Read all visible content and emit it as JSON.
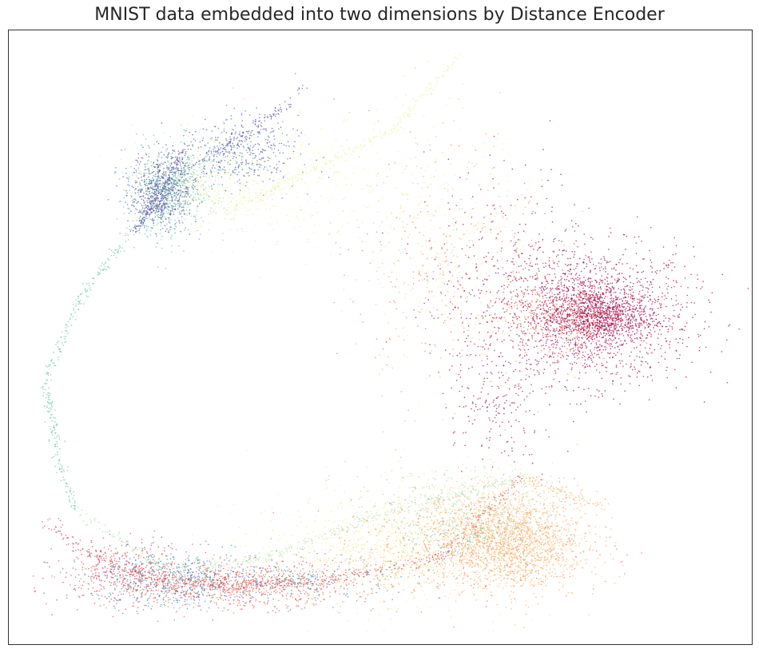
{
  "chart_data": {
    "type": "scatter",
    "title": "MNIST data embedded into two dimensions by Distance Encoder",
    "xlabel": "",
    "ylabel": "",
    "grid": false,
    "legend": "none",
    "xticks": [],
    "yticks": [],
    "xlim": [
      0,
      100
    ],
    "ylim": [
      0,
      100
    ],
    "frame_color": "#333333",
    "point_alpha": 0.7,
    "palette": {
      "crimson": "#9e0142",
      "red": "#d53e4f",
      "orange": "#f46d43",
      "light_orange": "#fdae61",
      "yellow": "#fee08b",
      "pale_yellow": "#ffffbf",
      "light_green": "#e6f598",
      "green": "#abdda4",
      "teal": "#66c2a5",
      "blue": "#3288bd",
      "purple": "#5e4fa2"
    },
    "series": [
      {
        "label_color": "#9e0142",
        "clusters": [
          {
            "cx": 79,
            "cy": 53.5,
            "sx": 6.5,
            "sy": 5.5,
            "n": 1500
          },
          {
            "cx": 79,
            "cy": 53.5,
            "sx": 3.5,
            "sy": 2.2,
            "n": 900
          },
          {
            "cx": 68,
            "cy": 58,
            "sx": 6,
            "sy": 10,
            "n": 400
          },
          {
            "cx": 66,
            "cy": 37,
            "sx": 3,
            "sy": 5,
            "n": 140
          }
        ]
      },
      {
        "label_color": "#d53e4f",
        "clusters": [
          {
            "cx": 16,
            "cy": 11.5,
            "sx": 4.5,
            "sy": 2.5,
            "n": 450
          },
          {
            "cx": 32,
            "cy": 9.5,
            "sx": 7,
            "sy": 1.8,
            "n": 350
          },
          {
            "cx": 72,
            "cy": 56,
            "sx": 4,
            "sy": 3,
            "n": 130
          }
        ],
        "paths": [
          {
            "points": [
              [
                5,
                20.5
              ],
              [
                9,
                16
              ],
              [
                20,
                10.2
              ],
              [
                30,
                9.5
              ],
              [
                44,
                10.5
              ],
              [
                58,
                14
              ],
              [
                69,
                27
              ]
            ],
            "n": 500,
            "spread": 0.5
          }
        ]
      },
      {
        "label_color": "#f46d43",
        "clusters": [
          {
            "cx": 30,
            "cy": 9.5,
            "sx": 8,
            "sy": 1.8,
            "n": 500
          },
          {
            "cx": 63,
            "cy": 16,
            "sx": 9,
            "sy": 4.5,
            "n": 350
          },
          {
            "cx": 75,
            "cy": 52.5,
            "sx": 4,
            "sy": 3,
            "n": 280
          },
          {
            "cx": 58,
            "cy": 60,
            "sx": 6,
            "sy": 9,
            "n": 140
          }
        ]
      },
      {
        "label_color": "#fdae61",
        "clusters": [
          {
            "cx": 66,
            "cy": 17.5,
            "sx": 5.5,
            "sy": 3.5,
            "n": 1500
          },
          {
            "cx": 69,
            "cy": 15,
            "sx": 4,
            "sy": 4,
            "n": 500
          },
          {
            "cx": 60,
            "cy": 60,
            "sx": 7,
            "sy": 12,
            "n": 200
          },
          {
            "cx": 49,
            "cy": 12.5,
            "sx": 6,
            "sy": 2.5,
            "n": 180
          }
        ],
        "paths": [
          {
            "points": [
              [
                69,
                27
              ],
              [
                80,
                22.5
              ]
            ],
            "n": 110,
            "spread": 0.6
          }
        ]
      },
      {
        "label_color": "#fee08b",
        "clusters": [
          {
            "cx": 52,
            "cy": 16,
            "sx": 9,
            "sy": 5,
            "n": 400
          },
          {
            "cx": 63,
            "cy": 24,
            "sx": 5,
            "sy": 2.5,
            "n": 150
          },
          {
            "cx": 40,
            "cy": 75,
            "sx": 7,
            "sy": 6,
            "n": 150
          },
          {
            "cx": 57,
            "cy": 70,
            "sx": 5,
            "sy": 10,
            "n": 120
          }
        ]
      },
      {
        "label_color": "#ffffbf",
        "clusters": [
          {
            "cx": 52,
            "cy": 17,
            "sx": 9,
            "sy": 4,
            "n": 350
          },
          {
            "cx": 38,
            "cy": 78,
            "sx": 6,
            "sy": 4,
            "n": 250
          },
          {
            "cx": 60,
            "cy": 66,
            "sx": 6,
            "sy": 10,
            "n": 120
          }
        ]
      },
      {
        "label_color": "#e6f598",
        "clusters": [
          {
            "cx": 50,
            "cy": 15.5,
            "sx": 9,
            "sy": 4.5,
            "n": 350
          },
          {
            "cx": 27,
            "cy": 76,
            "sx": 5,
            "sy": 4,
            "n": 300
          },
          {
            "cx": 62,
            "cy": 63,
            "sx": 6,
            "sy": 10,
            "n": 120
          }
        ],
        "paths": [
          {
            "points": [
              [
                29,
                70
              ],
              [
                52,
                84
              ],
              [
                61,
                96
              ]
            ],
            "n": 250,
            "spread": 0.35
          }
        ]
      },
      {
        "label_color": "#abdda4",
        "clusters": [
          {
            "cx": 24.5,
            "cy": 75.5,
            "sx": 3,
            "sy": 3.5,
            "n": 320
          },
          {
            "cx": 60,
            "cy": 24,
            "sx": 7,
            "sy": 2.5,
            "n": 180
          },
          {
            "cx": 56,
            "cy": 68,
            "sx": 5,
            "sy": 10,
            "n": 90
          }
        ],
        "paths": [
          {
            "points": [
              [
                9,
                22
              ],
              [
                20,
                13
              ],
              [
                26,
                12.5
              ],
              [
                36,
                14.5
              ],
              [
                50,
                21
              ],
              [
                69,
                27
              ]
            ],
            "n": 350,
            "spread": 0.4
          }
        ]
      },
      {
        "label_color": "#66c2a5",
        "clusters": [
          {
            "cx": 21,
            "cy": 73,
            "sx": 2.5,
            "sy": 3.5,
            "n": 400
          },
          {
            "cx": 62,
            "cy": 18,
            "sx": 5,
            "sy": 3,
            "n": 200
          }
        ],
        "paths": [
          {
            "points": [
              [
                9,
                22
              ],
              [
                7,
                28.5
              ],
              [
                5,
                43
              ],
              [
                9.5,
                56
              ],
              [
                16,
                66
              ],
              [
                24,
                78
              ]
            ],
            "n": 360,
            "spread": 0.35
          }
        ]
      },
      {
        "label_color": "#3288bd",
        "clusters": [
          {
            "cx": 22,
            "cy": 10.5,
            "sx": 5.5,
            "sy": 2.3,
            "n": 450
          },
          {
            "cx": 40,
            "cy": 10.5,
            "sx": 6,
            "sy": 1.8,
            "n": 200
          },
          {
            "cx": 31,
            "cy": 80,
            "sx": 4,
            "sy": 3,
            "n": 180
          },
          {
            "cx": 20.5,
            "cy": 73.5,
            "sx": 2.5,
            "sy": 3,
            "n": 180
          }
        ]
      },
      {
        "label_color": "#5e4fa2",
        "clusters": [
          {
            "cx": 20.5,
            "cy": 74,
            "sx": 2,
            "sy": 3,
            "n": 450
          },
          {
            "cx": 31,
            "cy": 80,
            "sx": 4,
            "sy": 3,
            "n": 240
          }
        ],
        "paths": [
          {
            "points": [
              [
                17,
                67
              ],
              [
                24,
                81
              ]
            ],
            "n": 150,
            "spread": 0.3
          },
          {
            "points": [
              [
                17,
                67
              ],
              [
                24,
                77
              ],
              [
                38,
                88
              ]
            ],
            "n": 130,
            "spread": 0.25
          },
          {
            "points": [
              [
                20,
                70
              ],
              [
                40,
                91
              ]
            ],
            "n": 90,
            "spread": 0.3
          }
        ]
      }
    ]
  }
}
